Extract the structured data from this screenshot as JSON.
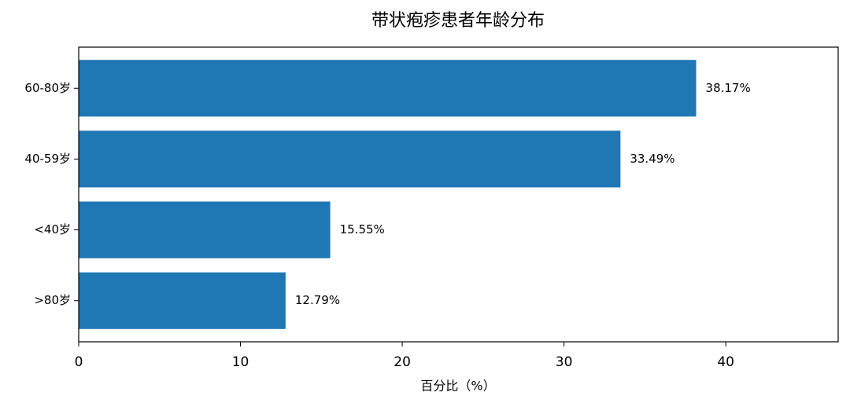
{
  "chart_data": {
    "type": "barh",
    "title": "带状疱疹患者年龄分布",
    "x_label": "百分比（%）",
    "categories": [
      "60-80岁",
      "40-59岁",
      "<40岁",
      ">80岁"
    ],
    "values": [
      38.17,
      33.49,
      15.55,
      12.79
    ],
    "value_labels": [
      "38.17%",
      "33.49%",
      "15.55%",
      "12.79%"
    ],
    "color": "#1f77b4",
    "xlim": [
      0,
      46.95
    ],
    "xticks": [
      0,
      10,
      20,
      30,
      40
    ]
  }
}
